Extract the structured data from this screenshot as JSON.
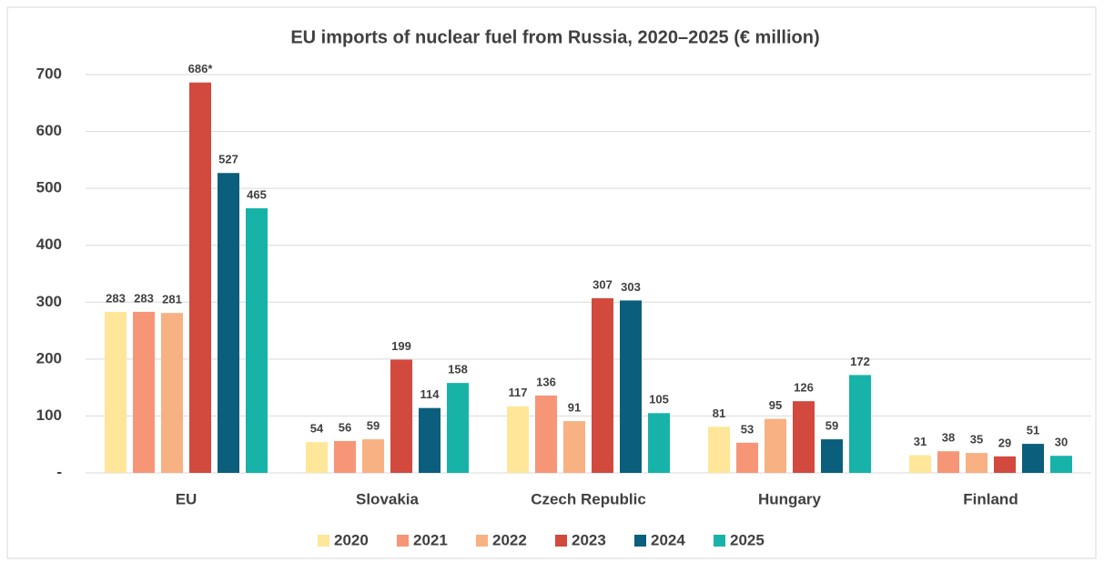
{
  "chart_data": {
    "type": "bar",
    "title": "EU imports of nuclear fuel from Russia, 2020–2025 (€ million)",
    "categories": [
      "EU",
      "Slovakia",
      "Czech Republic",
      "Hungary",
      "Finland"
    ],
    "series": [
      {
        "name": "2020",
        "color": "#FFE699",
        "values": [
          283,
          54,
          117,
          81,
          31
        ]
      },
      {
        "name": "2021",
        "color": "#F79577",
        "values": [
          283,
          56,
          136,
          53,
          38
        ]
      },
      {
        "name": "2022",
        "color": "#F8B183",
        "values": [
          281,
          59,
          91,
          95,
          35
        ]
      },
      {
        "name": "2023",
        "color": "#D2493E",
        "values": [
          686,
          199,
          307,
          126,
          29
        ],
        "value_labels": [
          "686*",
          "199",
          "307",
          "126",
          "29"
        ]
      },
      {
        "name": "2024",
        "color": "#0B5E7C",
        "values": [
          527,
          114,
          303,
          59,
          51
        ]
      },
      {
        "name": "2025",
        "color": "#17B3A8",
        "values": [
          465,
          158,
          105,
          172,
          30
        ]
      }
    ],
    "ylim": [
      0,
      700
    ],
    "yticks": [
      {
        "value": 0,
        "label": "-"
      },
      100,
      200,
      300,
      400,
      500,
      600,
      700
    ],
    "grid": true
  }
}
